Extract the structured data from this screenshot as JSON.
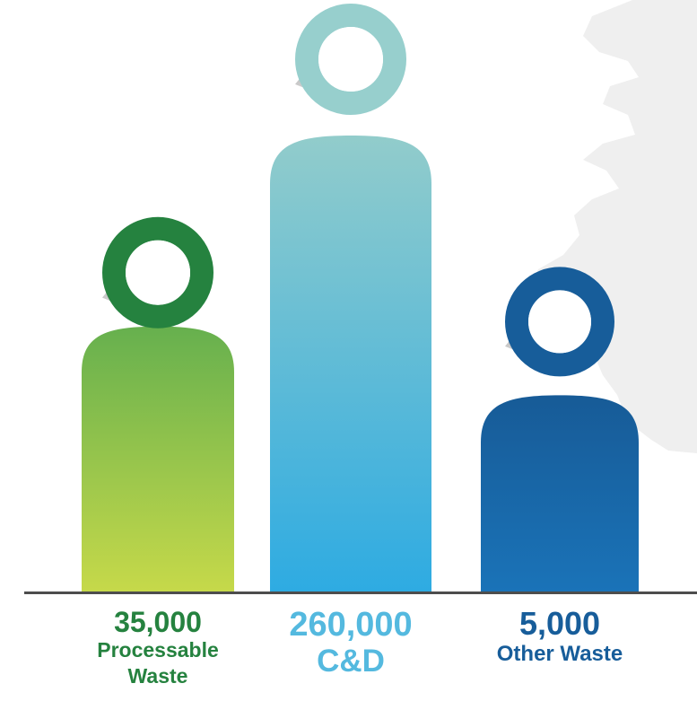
{
  "chart_data": {
    "type": "bar",
    "categories": [
      "Processable Waste",
      "C&D",
      "Other Waste"
    ],
    "values": [
      35000,
      260000,
      5000
    ],
    "value_labels": [
      "35,000",
      "260,000",
      "5,000"
    ],
    "name_lines": [
      [
        "Processable",
        "Waste"
      ],
      [
        "C&D"
      ],
      [
        "Other Waste"
      ]
    ],
    "bar_colors": [
      [
        "#66b04e",
        "#c6d94a"
      ],
      [
        "#92cccb",
        "#2eabe2"
      ],
      [
        "#175b97",
        "#1a73b8"
      ]
    ],
    "ring_colors": [
      "#25823f",
      "#97cfcd",
      "#175d9a"
    ],
    "label_colors": [
      "#25823f",
      "#54b9df",
      "#175d9a"
    ],
    "title": "",
    "xlabel": "",
    "ylabel": ""
  }
}
